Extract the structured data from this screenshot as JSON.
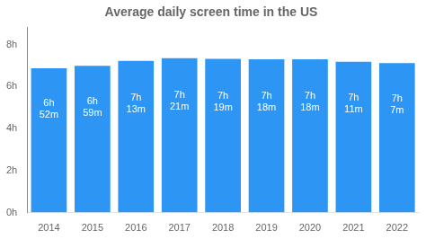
{
  "chart_data": {
    "type": "bar",
    "title": "Average daily screen time in the US",
    "categories": [
      "2014",
      "2015",
      "2016",
      "2017",
      "2018",
      "2019",
      "2020",
      "2021",
      "2022"
    ],
    "values": [
      6.867,
      6.983,
      7.217,
      7.35,
      7.317,
      7.3,
      7.3,
      7.183,
      7.117
    ],
    "value_labels": [
      "6h 52m",
      "6h 59m",
      "7h 13m",
      "7h 21m",
      "7h 19m",
      "7h 18m",
      "7h 18m",
      "7h 11m",
      "7h 7m"
    ],
    "data_labels": true,
    "color": "#2D96F5",
    "ylim": [
      0,
      8.8
    ],
    "yticks": [
      {
        "value": 0,
        "label": "0h"
      },
      {
        "value": 2,
        "label": "2h"
      },
      {
        "value": 4,
        "label": "4h"
      },
      {
        "value": 6,
        "label": "6h"
      },
      {
        "value": 8,
        "label": "8h"
      }
    ],
    "grid": false
  }
}
